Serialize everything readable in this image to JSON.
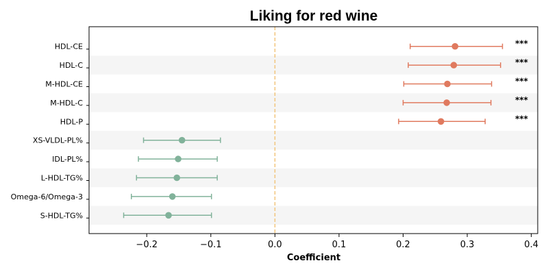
{
  "chart_data": {
    "type": "forest",
    "title": "Liking for red wine",
    "xlabel": "Coefficient",
    "xlim": [
      -0.29,
      0.41
    ],
    "xticks": [
      -0.2,
      -0.1,
      0.0,
      0.1,
      0.2,
      0.3,
      0.4
    ],
    "xtick_labels": [
      "−0.2",
      "−0.1",
      "0.0",
      "0.1",
      "0.2",
      "0.3",
      "0.4"
    ],
    "reference_line": 0.0,
    "colors": {
      "positive": "#e07a5f",
      "negative": "#81b29a",
      "reference_line": "#f2c57c",
      "band": "#f5f5f5"
    },
    "rows": [
      {
        "label": "HDL-CE",
        "estimate": 0.281,
        "ci_low": 0.211,
        "ci_high": 0.355,
        "sig": "***"
      },
      {
        "label": "HDL-C",
        "estimate": 0.279,
        "ci_low": 0.208,
        "ci_high": 0.352,
        "sig": "***"
      },
      {
        "label": "M-HDL-CE",
        "estimate": 0.269,
        "ci_low": 0.201,
        "ci_high": 0.338,
        "sig": "***"
      },
      {
        "label": "M-HDL-C",
        "estimate": 0.268,
        "ci_low": 0.2,
        "ci_high": 0.337,
        "sig": "***"
      },
      {
        "label": "HDL-P",
        "estimate": 0.259,
        "ci_low": 0.193,
        "ci_high": 0.328,
        "sig": "***"
      },
      {
        "label": "XS-VLDL-PL%",
        "estimate": -0.145,
        "ci_low": -0.205,
        "ci_high": -0.085,
        "sig": ""
      },
      {
        "label": "IDL-PL%",
        "estimate": -0.151,
        "ci_low": -0.213,
        "ci_high": -0.09,
        "sig": ""
      },
      {
        "label": "L-HDL-TG%",
        "estimate": -0.153,
        "ci_low": -0.216,
        "ci_high": -0.09,
        "sig": ""
      },
      {
        "label": "Omega-6/Omega-3",
        "estimate": -0.16,
        "ci_low": -0.224,
        "ci_high": -0.099,
        "sig": ""
      },
      {
        "label": "S-HDL-TG%",
        "estimate": -0.166,
        "ci_low": -0.236,
        "ci_high": -0.099,
        "sig": ""
      }
    ]
  }
}
